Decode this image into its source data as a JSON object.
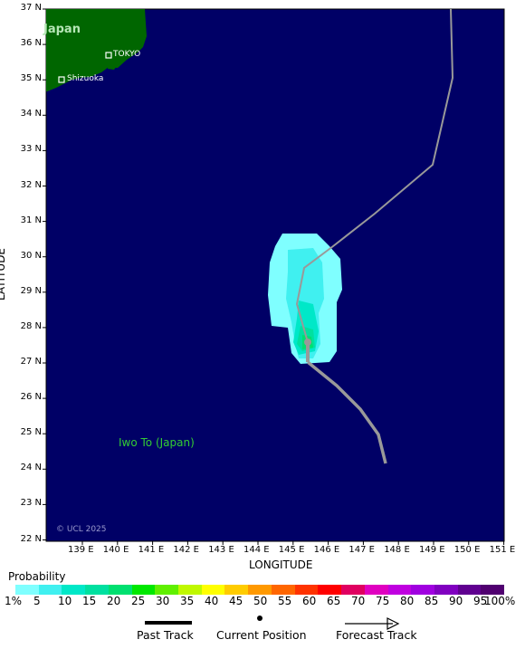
{
  "map": {
    "lat_ticks": [
      "37 N",
      "36 N",
      "35 N",
      "34 N",
      "33 N",
      "32 N",
      "31 N",
      "30 N",
      "29 N",
      "28 N",
      "27 N",
      "26 N",
      "25 N",
      "24 N",
      "23 N",
      "22 N"
    ],
    "lon_ticks": [
      "139 E",
      "140 E",
      "141 E",
      "142 E",
      "143 E",
      "144 E",
      "145 E",
      "146 E",
      "147 E",
      "148 E",
      "149 E",
      "150 E",
      "151 E"
    ],
    "xlabel": "LONGITUDE",
    "ylabel": "LATITUDE",
    "land_label": "Japan",
    "city_tokyo": "TOKYO",
    "city_shizuoka": "Shizuoka",
    "island_label": "Iwo To (Japan)",
    "copyright": "© UCL 2025",
    "colors": {
      "ocean": "#000066",
      "land": "#006600",
      "track": "#999999",
      "island_label": "#33cc33"
    }
  },
  "legend": {
    "title": "Probability",
    "stops": [
      "1%",
      "5",
      "10",
      "15",
      "20",
      "25",
      "30",
      "35",
      "40",
      "45",
      "50",
      "55",
      "60",
      "65",
      "70",
      "75",
      "80",
      "85",
      "90",
      "95",
      "100%"
    ],
    "colors": [
      "#7fffff",
      "#40f0f0",
      "#00e8c8",
      "#00e0a0",
      "#00e070",
      "#00e800",
      "#60f000",
      "#c0f800",
      "#ffff00",
      "#ffcc00",
      "#ff9900",
      "#ff6600",
      "#ff3300",
      "#ff0000",
      "#e00060",
      "#e000c0",
      "#c000e0",
      "#a000e0",
      "#8000c0",
      "#600090",
      "#500070"
    ],
    "past_track": "Past Track",
    "current_position": "Current Position",
    "forecast_track": "Forecast Track"
  }
}
